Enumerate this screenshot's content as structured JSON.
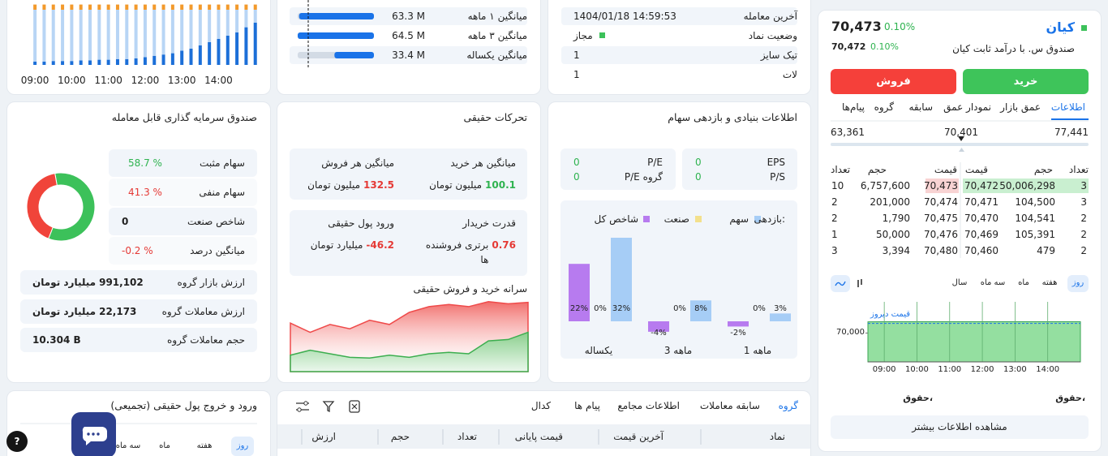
{
  "symbol": {
    "name": "کیان",
    "full_name": "صندوق س. با درآمد ثابت کیان",
    "last_price": "70,473",
    "last_change": "0.10%",
    "close_price": "70,472",
    "close_change": "0.10%"
  },
  "actions": {
    "buy": "خرید",
    "sell": "فروش"
  },
  "tabs": [
    "اطلاعات",
    "عمق بازار",
    "نمودار عمق",
    "سابقه",
    "گروه",
    "پیام‌ها"
  ],
  "price_range": {
    "min": "63,361",
    "current": "70,401",
    "max": "77,441"
  },
  "order_book": {
    "buy_headers": [
      "تعداد",
      "حجم",
      "قیمت"
    ],
    "sell_headers": [
      "قیمت",
      "حجم",
      "تعداد"
    ],
    "rows": [
      {
        "buy_count": "3",
        "buy_volume": "50,006,298",
        "buy_price": "70,472",
        "sell_price": "70,473",
        "sell_volume": "6,757,600",
        "sell_count": "10"
      },
      {
        "buy_count": "3",
        "buy_volume": "104,500",
        "buy_price": "70,471",
        "sell_price": "70,474",
        "sell_volume": "201,000",
        "sell_count": "2"
      },
      {
        "buy_count": "2",
        "buy_volume": "104,541",
        "buy_price": "70,470",
        "sell_price": "70,475",
        "sell_volume": "1,790",
        "sell_count": "2"
      },
      {
        "buy_count": "2",
        "buy_volume": "105,391",
        "buy_price": "70,469",
        "sell_price": "70,476",
        "sell_volume": "50,000",
        "sell_count": "1"
      },
      {
        "buy_count": "2",
        "buy_volume": "479",
        "buy_price": "70,460",
        "sell_price": "70,480",
        "sell_volume": "3,394",
        "sell_count": "3"
      }
    ]
  },
  "periods": [
    "روز",
    "هفته",
    "ماه",
    "سه ماه",
    "سال"
  ],
  "intraday_chart": {
    "type": "area",
    "x": [
      8.5,
      9,
      10,
      11,
      12,
      13,
      14,
      15
    ],
    "values": [
      70470,
      70473,
      70472,
      70474,
      70473,
      70471,
      70473,
      70473
    ],
    "color": "#94dfa0",
    "xlim": [
      8.5,
      15
    ],
    "ylim": [
      68800,
      71300
    ],
    "xticks": [
      {
        "value": 9,
        "label": "09:00"
      },
      {
        "value": 10,
        "label": "10:00"
      },
      {
        "value": 11,
        "label": "11:00"
      },
      {
        "value": 12,
        "label": "12:00"
      },
      {
        "value": 13,
        "label": "13:00"
      },
      {
        "value": 14,
        "label": "14:00"
      }
    ],
    "yticks": [
      {
        "value": 70000,
        "label": "70,000"
      }
    ],
    "reference": {
      "label": "قیمت دیروز",
      "value": 70401,
      "color": "#1a73e8"
    },
    "grid": true
  },
  "rights": [
    "حقوق،",
    "حقوق،"
  ],
  "more_info": "مشاهده اطلاعات بیشتر",
  "volume_chart": {
    "type": "bar",
    "x": [
      9,
      9.25,
      9.5,
      9.75,
      10,
      10.25,
      10.5,
      10.75,
      11,
      11.25,
      11.5,
      11.75,
      12,
      12.25,
      12.5,
      12.75,
      13,
      13.25,
      13.5,
      13.75,
      14,
      14.25,
      14.5,
      14.75,
      15
    ],
    "series": [
      {
        "color": "#1c6fd8",
        "values": [
          5,
          5,
          6,
          6,
          6,
          7,
          7,
          8,
          8,
          9,
          9,
          10,
          12,
          14,
          16,
          18,
          22,
          25,
          30,
          35,
          40,
          45,
          50,
          58,
          65
        ]
      },
      {
        "color": "#b8d5f5",
        "values": [
          80,
          80,
          79,
          79,
          79,
          78,
          78,
          77,
          77,
          76,
          76,
          75,
          73,
          71,
          69,
          67,
          63,
          60,
          55,
          50,
          45,
          40,
          35,
          27,
          20
        ]
      },
      {
        "color": "#f39a2b",
        "values": [
          8,
          8,
          8,
          8,
          8,
          8,
          8,
          8,
          8,
          8,
          8,
          8,
          8,
          8,
          8,
          8,
          8,
          8,
          8,
          8,
          8,
          8,
          8,
          8,
          8
        ]
      }
    ],
    "xlim": [
      8.6,
      15.05
    ],
    "ylim": [
      0,
      100
    ],
    "xticks": [
      {
        "value": 9,
        "label": "09:00"
      },
      {
        "value": 10,
        "label": "10:00"
      },
      {
        "value": 11,
        "label": "11:00"
      },
      {
        "value": 12,
        "label": "12:00"
      },
      {
        "value": 13,
        "label": "13:00"
      },
      {
        "value": 14,
        "label": "14:00"
      }
    ]
  },
  "averages": {
    "labels": [
      "میانگین ۱ ماهه",
      "میانگین ۳ ماهه",
      "میانگین یکساله"
    ],
    "values": [
      63.3,
      64.5,
      33.4
    ],
    "value_labels": [
      "63.3 M",
      "64.5 M",
      "33.4 M"
    ],
    "color": "#1a73e8"
  },
  "trade_info": {
    "rows": [
      {
        "label": "آخرین معامله",
        "value": "1404/01/18 14:59:53"
      },
      {
        "label": "وضعیت نماد",
        "value": "مجاز"
      },
      {
        "label": "تیک سایز",
        "value": "1"
      },
      {
        "label": "لات",
        "value": "1"
      }
    ]
  },
  "fundamentals": {
    "title": "اطلاعات بنیادی و بازدهی سهام",
    "ratios": [
      {
        "label": "EPS",
        "value": "0"
      },
      {
        "label": "P/S",
        "value": "0"
      },
      {
        "label": "P/E",
        "value": "0"
      },
      {
        "label": "P/E گروه",
        "value": "0"
      }
    ],
    "returns_chart": {
      "type": "bar",
      "legend_title": "بازدهی:",
      "categories": [
        "یکساله",
        "3 ماهه",
        "1 ماهه"
      ],
      "series": [
        {
          "name": "شاخص کل",
          "color": "#b77bef",
          "values": [
            22,
            -4,
            -2
          ],
          "value_labels": [
            "22%",
            "-4%",
            "-2%"
          ]
        },
        {
          "name": "صنعت",
          "color": "#f3e08c",
          "values": [
            0,
            0,
            0
          ],
          "value_labels": [
            "0%",
            "0%",
            "0%"
          ]
        },
        {
          "name": "سهم",
          "color": "#a6cdf6",
          "values": [
            32,
            8,
            3
          ],
          "value_labels": [
            "32%",
            "8%",
            "3%"
          ]
        }
      ]
    }
  },
  "real_flows": {
    "title": "تحرکات حقیقی",
    "items": [
      {
        "label": "میانگین هر خرید",
        "value": "100.1",
        "unit": "میلیون تومان"
      },
      {
        "label": "میانگین هر فروش",
        "value": "132.5",
        "unit": "میلیون تومان"
      },
      {
        "label": "قدرت خریدار",
        "value": "0.76",
        "unit": "برتری فروشنده ها"
      },
      {
        "label": "ورود پول حقیقی",
        "value": "-46.2",
        "unit": "میلیارد تومان"
      }
    ],
    "per_capita_chart": {
      "type": "area",
      "title": "سرانه خرید و فروش حقیقی",
      "series": [
        {
          "color": "#ef4a4a",
          "values": [
            68,
            55,
            66,
            60,
            72,
            66,
            83,
            91,
            94,
            91,
            98,
            95,
            97
          ]
        },
        {
          "color": "#3cae4f",
          "values": [
            23,
            30,
            25,
            20,
            19,
            23,
            20,
            25,
            27,
            25,
            43,
            45,
            55
          ]
        }
      ],
      "ylim": [
        0,
        100
      ]
    }
  },
  "fund_group": {
    "title": "صندوق سرمایه گذاری قابل معامله",
    "breadth_chart": {
      "type": "pie",
      "categories": [
        "سهام مثبت",
        "سهام منفی"
      ],
      "values": [
        58.7,
        41.3
      ],
      "value_labels": [
        "58.7 %",
        "41.3 %"
      ],
      "colors": [
        "#3cc15a",
        "#f0443a"
      ]
    },
    "stats": [
      {
        "label": "شاخص صنعت",
        "value": "0"
      },
      {
        "label": "میانگین درصد",
        "value": "-0.2 %"
      }
    ],
    "totals": [
      {
        "label": "ارزش بازار گروه",
        "value": "991,102",
        "unit": "میلیارد تومان"
      },
      {
        "label": "ارزش معاملات گروه",
        "value": "22,173",
        "unit": "میلیارد تومان"
      },
      {
        "label": "حجم معاملات گروه",
        "value": "10.304 B"
      }
    ]
  },
  "real_money_flow": {
    "title": "ورود و خروج پول حقیقی (تجمیعی)",
    "periods": [
      "روز",
      "هفته",
      "ماه",
      "سه ماه"
    ]
  },
  "group_table": {
    "tabs": [
      "گروه",
      "سابقه معاملات",
      "اطلاعات مجامع",
      "پیام ها",
      "کدال"
    ],
    "headers": [
      "نماد",
      "آخرین قیمت",
      "قیمت پایانی",
      "تعداد",
      "حجم",
      "ارزش"
    ]
  },
  "help": "?"
}
